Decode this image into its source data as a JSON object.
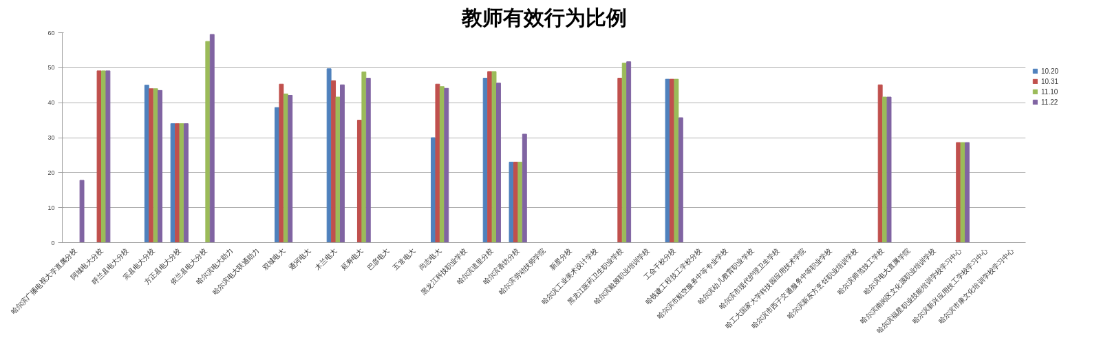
{
  "chart_data": {
    "type": "bar",
    "title": "教师有效行为比例",
    "categories": [
      "哈尔滨广播电视大学直属分校",
      "阿城电大分校",
      "呼兰县电大分校",
      "宾县电大分校",
      "方正县电大分校",
      "依兰县电大分校",
      "哈尔滨电大助力",
      "哈尔滨电大联通助力",
      "双城电大",
      "通河电大",
      "木兰电大",
      "延寿电大",
      "巴彦电大",
      "五常电大",
      "尚志电大",
      "黑龙江科技职业学校",
      "哈尔滨道里分校",
      "哈尔滨香坊分校",
      "哈尔滨劳动技师学院",
      "新星分校",
      "哈尔滨工业美术设计学校",
      "黑龙江医药卫生职业学校",
      "哈尔滨戴娅职业培训学校",
      "工会干校分校",
      "哈铁建工程技工学校分校",
      "哈尔滨市航空服务中等专业学校",
      "哈尔滨幼儿教育职业学校",
      "哈尔滨市现代护理卫生学校",
      "哈工大国家大学科技园应用技术学院",
      "哈尔滨市西子交通服务中等职业学校",
      "哈尔滨新东方烹饪职业培训学校",
      "哈尔滨师范技工学校",
      "哈尔滨电大直属学院",
      "哈尔滨南岗区文化源职业培训学校",
      "哈尔滨福星职业技能培训学校学习中心",
      "哈尔滨新兴应用技工学校学习中心",
      "哈尔滨市康文化培训学校学习中心"
    ],
    "series": [
      {
        "name": "10.20",
        "color": "#4f81bd",
        "values": [
          0,
          0,
          0,
          45,
          34,
          0,
          0,
          0,
          38.6,
          0,
          49.7,
          0,
          0,
          0,
          30,
          0,
          47,
          23,
          0,
          0,
          0,
          0,
          0,
          46.7,
          0,
          0,
          0,
          0,
          0,
          0,
          0,
          0,
          0,
          0,
          0,
          0,
          0
        ]
      },
      {
        "name": "10.31",
        "color": "#c0504d",
        "values": [
          0,
          49.1,
          0,
          44,
          34,
          0,
          0,
          0,
          45.3,
          0,
          46.3,
          35,
          0,
          0,
          45.3,
          0,
          48.9,
          23,
          0,
          0,
          0,
          47,
          0,
          46.7,
          0,
          0,
          0,
          0,
          0,
          0,
          0,
          45.1,
          0,
          0,
          28.6,
          0,
          0
        ]
      },
      {
        "name": "11.10",
        "color": "#9bbb59",
        "values": [
          0,
          49.1,
          0,
          44,
          34,
          57.5,
          0,
          0,
          42.5,
          0,
          41.6,
          48.8,
          0,
          0,
          44.6,
          0,
          48.9,
          23,
          0,
          0,
          0,
          51.3,
          0,
          46.7,
          0,
          0,
          0,
          0,
          0,
          0,
          0,
          41.6,
          0,
          0,
          28.6,
          0,
          0
        ]
      },
      {
        "name": "11.22",
        "color": "#8064a2",
        "values": [
          17.8,
          49.1,
          0,
          43.5,
          34,
          59.5,
          0,
          0,
          42.1,
          0,
          45.1,
          47,
          0,
          0,
          44.1,
          0,
          45.6,
          31,
          0,
          0,
          0,
          51.7,
          0,
          35.7,
          0,
          0,
          0,
          0,
          0,
          0,
          0,
          41.6,
          0,
          0,
          28.6,
          0,
          0
        ]
      }
    ],
    "ylim": [
      0,
      60
    ],
    "yticks": [
      0,
      10,
      20,
      30,
      40,
      50,
      60
    ],
    "grid": "y",
    "legend": "right"
  }
}
